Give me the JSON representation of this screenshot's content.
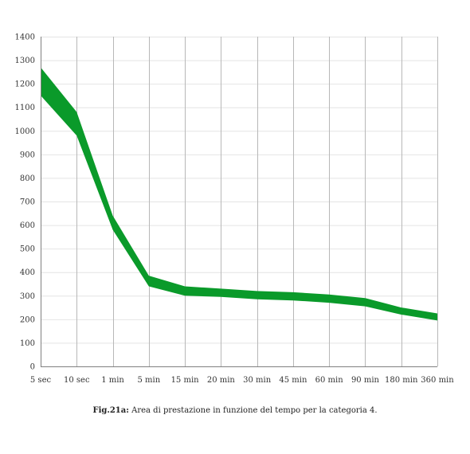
{
  "chart_data": {
    "type": "area",
    "categories": [
      "5 sec",
      "10 sec",
      "1 min",
      "5 min",
      "15 min",
      "20 min",
      "30 min",
      "45 min",
      "60 min",
      "90 min",
      "180 min",
      "360 min"
    ],
    "series": [
      {
        "values": [
          1150,
          980,
          580,
          340,
          300,
          295,
          285,
          280,
          270,
          255,
          220,
          195
        ]
      },
      {
        "values": [
          1270,
          1080,
          640,
          385,
          340,
          330,
          320,
          315,
          305,
          290,
          250,
          225
        ]
      }
    ],
    "ylim": [
      0,
      1400
    ],
    "yticks": [
      0,
      100,
      200,
      300,
      400,
      500,
      600,
      700,
      800,
      900,
      1000,
      1100,
      1200,
      1300,
      1400
    ],
    "grid": true,
    "colors": {
      "band": "#0a9a2a",
      "grid": "#e4e4e4",
      "vgrid": "#b8b8b8",
      "axis": "#808080"
    }
  },
  "caption": {
    "label": "Fig.21a:",
    "text": " Area di prestazione in funzione del tempo per la categoria 4."
  }
}
